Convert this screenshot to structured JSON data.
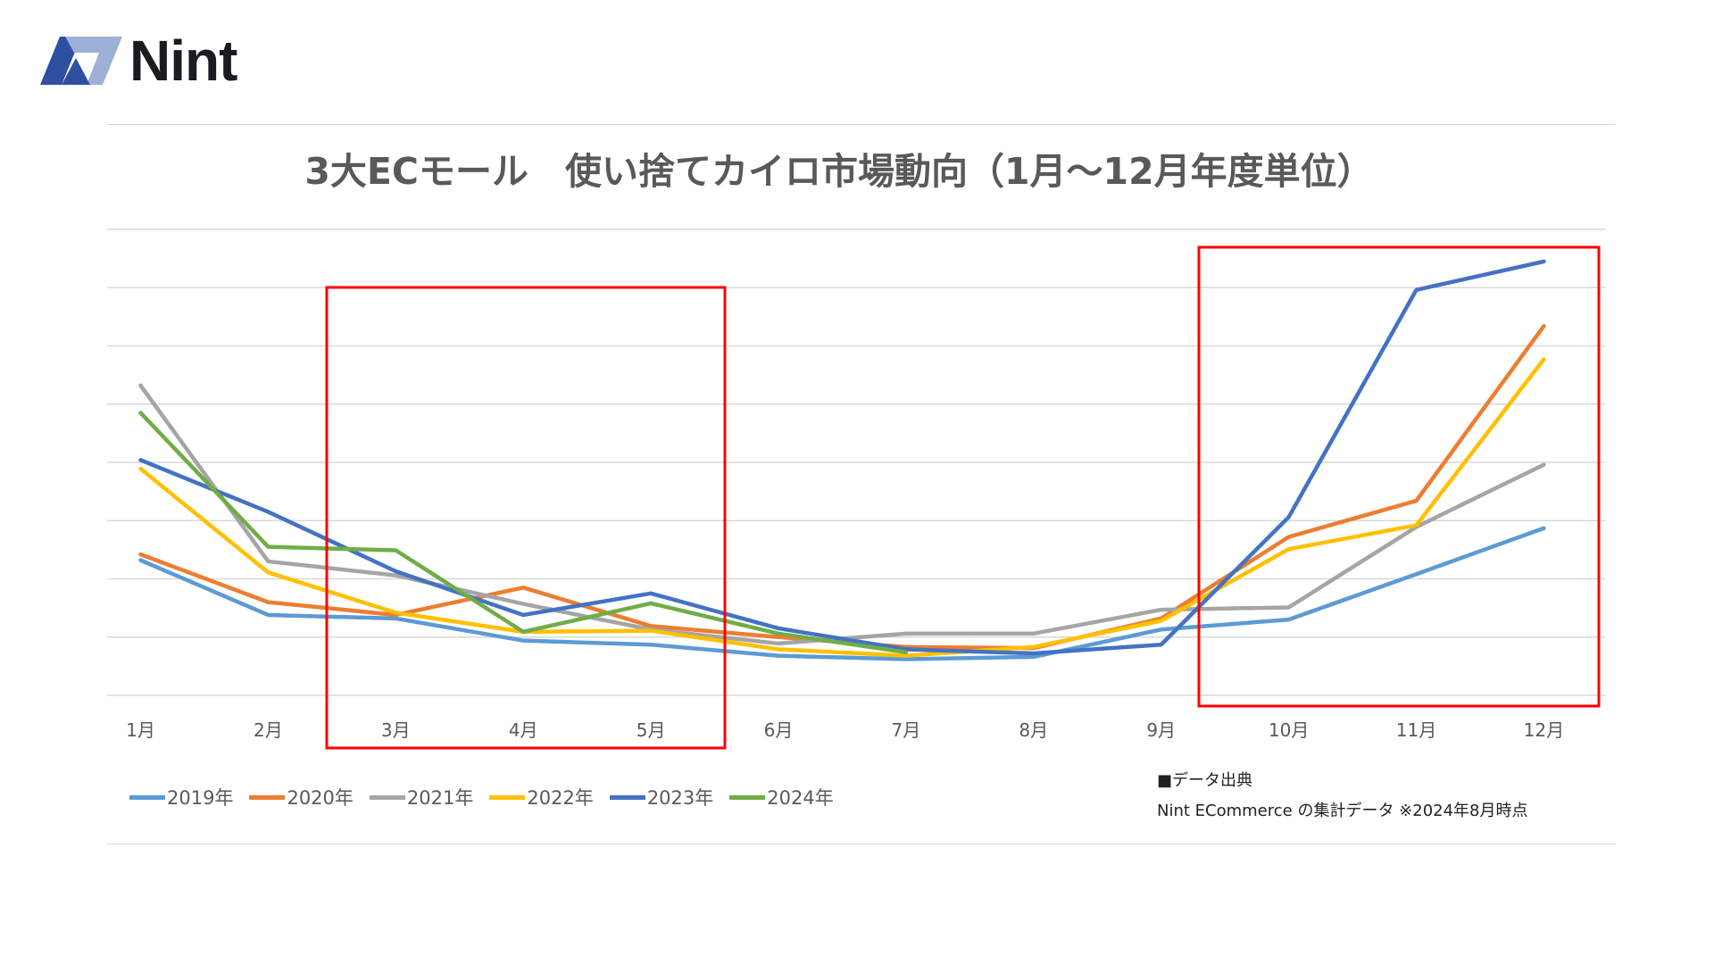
{
  "logo": {
    "text": "Nint"
  },
  "chart_data": {
    "type": "line",
    "title": "3大ECモール　使い捨てカイロ市場動向（1月～12月年度単位）",
    "categories": [
      "1月",
      "2月",
      "3月",
      "4月",
      "5月",
      "6月",
      "7月",
      "8月",
      "9月",
      "10月",
      "11月",
      "12月"
    ],
    "ylim": [
      0,
      8
    ],
    "y_axis_labels": "none",
    "grid": true,
    "legend": "bottom-left",
    "series": [
      {
        "name": "2019年",
        "color": "#5B9BD5",
        "values": [
          2.32,
          1.38,
          1.32,
          0.94,
          0.87,
          0.68,
          0.62,
          0.66,
          1.13,
          1.3,
          2.08,
          2.87
        ]
      },
      {
        "name": "2020年",
        "color": "#ED7D31",
        "values": [
          2.42,
          1.6,
          1.38,
          1.85,
          1.19,
          1.0,
          0.83,
          0.81,
          1.32,
          2.72,
          3.34,
          6.34
        ]
      },
      {
        "name": "2021年",
        "color": "#A5A5A5",
        "values": [
          5.32,
          2.3,
          2.06,
          1.57,
          1.13,
          0.89,
          1.06,
          1.06,
          1.47,
          1.51,
          2.89,
          3.96
        ]
      },
      {
        "name": "2022年",
        "color": "#FFC000",
        "values": [
          3.89,
          2.11,
          1.42,
          1.09,
          1.11,
          0.79,
          0.68,
          0.83,
          1.28,
          2.51,
          2.92,
          5.77
        ]
      },
      {
        "name": "2023年",
        "color": "#4472C4",
        "values": [
          4.04,
          3.15,
          2.13,
          1.38,
          1.75,
          1.15,
          0.79,
          0.72,
          0.87,
          3.06,
          6.96,
          7.45
        ]
      },
      {
        "name": "2024年",
        "color": "#70AD47",
        "values": [
          4.85,
          2.55,
          2.49,
          1.09,
          1.58,
          1.06,
          0.74,
          null,
          null,
          null,
          null,
          null
        ]
      }
    ],
    "highlights": [
      {
        "from": "3月",
        "to": "5月",
        "color": "#FF0000"
      },
      {
        "from": "10月",
        "to": "12月",
        "color": "#FF0000"
      }
    ]
  },
  "source": {
    "heading": "■データ出典",
    "text": "Nint ECommerce の集計データ ※2024年8月時点"
  }
}
